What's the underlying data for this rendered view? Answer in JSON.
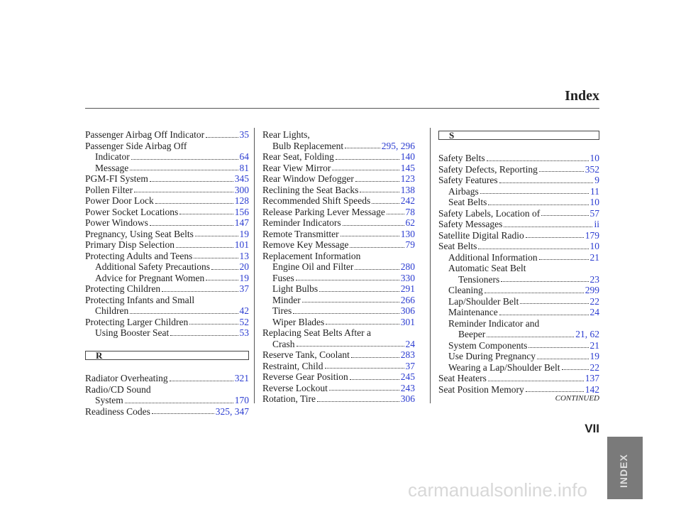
{
  "header": {
    "title": "Index"
  },
  "columns": [
    {
      "entries": [
        {
          "text": [
            "Passenger Airbag Off Indicator"
          ],
          "page": "35"
        },
        {
          "text": [
            "Passenger Side Airbag Off",
            "Indicator"
          ],
          "page": "64",
          "sub": [
            {
              "text": [
                "Message"
              ],
              "page": "81"
            }
          ]
        },
        {
          "text": [
            "PGM-FI System"
          ],
          "page": "345"
        },
        {
          "text": [
            "Pollen Filter"
          ],
          "page": "300"
        },
        {
          "text": [
            "Power Door Lock"
          ],
          "page": "128"
        },
        {
          "text": [
            "Power Socket Locations"
          ],
          "page": "156"
        },
        {
          "text": [
            "Power Windows"
          ],
          "page": "147"
        },
        {
          "text": [
            "Pregnancy, Using Seat Belts"
          ],
          "page": "19"
        },
        {
          "text": [
            "Primary Disp Selection"
          ],
          "page": "101"
        },
        {
          "text": [
            "Protecting Adults and Teens"
          ],
          "page": "13",
          "sub": [
            {
              "text": [
                "Additional Safety Precautions"
              ],
              "page": "20"
            },
            {
              "text": [
                "Advice for Pregnant Women"
              ],
              "page": "19"
            }
          ]
        },
        {
          "text": [
            "Protecting Children"
          ],
          "page": "37"
        },
        {
          "text": [
            "Protecting Infants and Small",
            "Children"
          ],
          "page": "42"
        },
        {
          "text": [
            "Protecting Larger Children"
          ],
          "page": "52",
          "sub": [
            {
              "text": [
                "Using Booster Seat"
              ],
              "page": "53"
            }
          ]
        },
        {
          "heading": "R"
        },
        {
          "text": [
            "Radiator Overheating"
          ],
          "page": "321"
        },
        {
          "text": [
            "Radio/CD Sound",
            "System"
          ],
          "page": "170"
        },
        {
          "text": [
            "Readiness Codes"
          ],
          "page": "325, 347"
        }
      ]
    },
    {
      "entries": [
        {
          "text": [
            "Rear Lights,"
          ],
          "sub": [
            {
              "text": [
                "Bulb Replacement"
              ],
              "page": "295, 296"
            }
          ]
        },
        {
          "text": [
            "Rear Seat, Folding"
          ],
          "page": "140"
        },
        {
          "text": [
            "Rear View Mirror"
          ],
          "page": "145"
        },
        {
          "text": [
            "Rear Window Defogger"
          ],
          "page": "123"
        },
        {
          "text": [
            "Reclining the Seat Backs"
          ],
          "page": "138"
        },
        {
          "text": [
            "Recommended Shift Speeds"
          ],
          "page": "242"
        },
        {
          "text": [
            "Release Parking Lever Message"
          ],
          "page": "78"
        },
        {
          "text": [
            "Reminder Indicators"
          ],
          "page": "62"
        },
        {
          "text": [
            "Remote Transmitter"
          ],
          "page": "130"
        },
        {
          "text": [
            "Remove Key Message"
          ],
          "page": "79"
        },
        {
          "text": [
            "Replacement Information"
          ],
          "sub": [
            {
              "text": [
                "Engine Oil and Filter"
              ],
              "page": "280"
            },
            {
              "text": [
                "Fuses"
              ],
              "page": "330"
            },
            {
              "text": [
                "Light Bulbs"
              ],
              "page": "291"
            },
            {
              "text": [
                "Minder"
              ],
              "page": "266"
            },
            {
              "text": [
                "Tires"
              ],
              "page": "306"
            },
            {
              "text": [
                "Wiper Blades"
              ],
              "page": "301"
            }
          ]
        },
        {
          "text": [
            "Replacing Seat Belts After a",
            "Crash"
          ],
          "page": "24"
        },
        {
          "text": [
            "Reserve Tank, Coolant"
          ],
          "page": "283"
        },
        {
          "text": [
            "Restraint, Child"
          ],
          "page": "37"
        },
        {
          "text": [
            "Reverse Gear Position"
          ],
          "page": "245"
        },
        {
          "text": [
            "Reverse Lockout"
          ],
          "page": "243"
        },
        {
          "text": [
            "Rotation, Tire"
          ],
          "page": "306"
        }
      ]
    },
    {
      "entries": [
        {
          "heading": "S"
        },
        {
          "text": [
            "Safety Belts"
          ],
          "page": "10"
        },
        {
          "text": [
            "Safety Defects, Reporting"
          ],
          "page": "352"
        },
        {
          "text": [
            "Safety Features"
          ],
          "page": "9",
          "sub": [
            {
              "text": [
                "Airbags"
              ],
              "page": "11"
            },
            {
              "text": [
                "Seat Belts"
              ],
              "page": "10"
            }
          ]
        },
        {
          "text": [
            "Safety Labels, Location of"
          ],
          "page": "57"
        },
        {
          "text": [
            "Safety Messages"
          ],
          "page": "ii"
        },
        {
          "text": [
            "Satellite Digital Radio"
          ],
          "page": "179"
        },
        {
          "text": [
            "Seat Belts"
          ],
          "page": "10",
          "sub": [
            {
              "text": [
                "Additional Information"
              ],
              "page": "21"
            },
            {
              "text": [
                "Automatic Seat Belt",
                "Tensioners"
              ],
              "page": "23"
            },
            {
              "text": [
                "Cleaning"
              ],
              "page": "299"
            },
            {
              "text": [
                "Lap/Shoulder Belt"
              ],
              "page": "22"
            },
            {
              "text": [
                "Maintenance"
              ],
              "page": "24"
            },
            {
              "text": [
                "Reminder Indicator and",
                "Beeper"
              ],
              "page": "21, 62"
            },
            {
              "text": [
                "System Components"
              ],
              "page": "21"
            },
            {
              "text": [
                "Use During Pregnancy"
              ],
              "page": "19"
            },
            {
              "text": [
                "Wearing a Lap/Shoulder Belt"
              ],
              "page": "22"
            }
          ]
        },
        {
          "text": [
            "Seat Heaters"
          ],
          "page": "137"
        },
        {
          "text": [
            "Seat Position Memory"
          ],
          "page": "142"
        }
      ]
    }
  ],
  "footer": {
    "continued": "CONTINUED",
    "page_number": "VII"
  },
  "tab": "INDEX",
  "watermark": "carmanualsonline.info"
}
